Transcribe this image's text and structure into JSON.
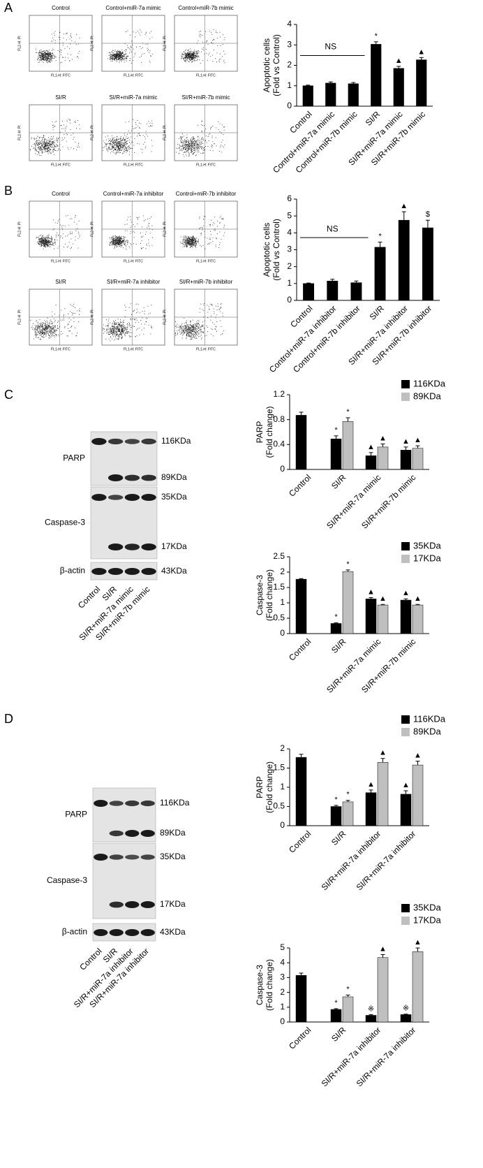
{
  "panels": [
    "A",
    "B",
    "C",
    "D"
  ],
  "flow": [
    {
      "titles": [
        "Control",
        "Control+miR-7a mimic",
        "Control+miR-7b mimic",
        "SI/R",
        "SI/R+miR-7a mimic",
        "SI/R+miR-7b mimic"
      ],
      "x_label": "FL1-H: FITC",
      "y_label": "FL2-H: PI"
    },
    {
      "titles": [
        "Control",
        "Control+miR-7a inhibitor",
        "Control+miR-7b inhibitor",
        "SI/R",
        "SI/R+miR-7a inhibitor",
        "SI/R+miR-7b inhibitor"
      ],
      "x_label": "FL1-H: FITC",
      "y_label": "FL2-H: PI"
    }
  ],
  "blots": [
    {
      "rows": [
        {
          "label": "PARP",
          "bands": [
            "116KDa",
            "89KDa"
          ]
        },
        {
          "label": "Caspase-3",
          "bands": [
            "35KDa",
            "17KDa"
          ]
        },
        {
          "label": "β-actin",
          "bands": [
            "43KDa"
          ]
        }
      ],
      "lanes": [
        "Control",
        "SI/R",
        "SI/R+miR-7a mimic",
        "SI/R+miR-7b mimic"
      ]
    },
    {
      "rows": [
        {
          "label": "PARP",
          "bands": [
            "116KDa",
            "89KDa"
          ]
        },
        {
          "label": "Caspase-3",
          "bands": [
            "35KDa",
            "17KDa"
          ]
        },
        {
          "label": "β-actin",
          "bands": [
            "43KDa"
          ]
        }
      ],
      "lanes": [
        "Control",
        "SI/R",
        "SI/R+miR-7a inhibitor",
        "SI/R+miR-7a inhibitor"
      ]
    }
  ],
  "chart_data": [
    {
      "type": "bar",
      "y_label": [
        "Apoptotic cells",
        "(Fold vs Control)"
      ],
      "annotation": "NS",
      "categories": [
        "Control",
        "Control+miR-7a mimic",
        "Control+miR-7b mimic",
        "SI/R",
        "SI/R+miR-7a mimic",
        "SI/R+miR-7b mimic"
      ],
      "series": [
        {
          "color": "#000000",
          "values": [
            1,
            1.13,
            1.1,
            3.03,
            1.85,
            2.27
          ],
          "errors": [
            0.03,
            0.06,
            0.06,
            0.12,
            0.1,
            0.11
          ],
          "markers": [
            null,
            null,
            null,
            "*",
            "▲",
            "▲"
          ]
        }
      ],
      "ylim": [
        0,
        4
      ],
      "yticks": [
        0,
        1,
        2,
        3,
        4
      ]
    },
    {
      "type": "bar",
      "y_label": [
        "Apoptotic cells",
        "(Fold vs Control)"
      ],
      "annotation": "NS",
      "categories": [
        "Control",
        "Control+miR-7a inhibitor",
        "Control+miR-7b inhibitor",
        "SI/R",
        "SI/R+miR-7a inhibitor",
        "SI/R+miR-7b inhibitor"
      ],
      "series": [
        {
          "color": "#000000",
          "values": [
            1,
            1.15,
            1.05,
            3.15,
            4.75,
            4.3
          ],
          "errors": [
            0.03,
            0.1,
            0.1,
            0.3,
            0.5,
            0.45
          ],
          "markers": [
            null,
            null,
            null,
            "*",
            "▲",
            "$"
          ]
        }
      ],
      "ylim": [
        0,
        6
      ],
      "yticks": [
        0,
        1,
        2,
        3,
        4,
        5,
        6
      ]
    },
    {
      "type": "bar",
      "y_label": [
        "PARP",
        "(Fold change)"
      ],
      "categories": [
        "Control",
        "SI/R",
        "SI/R+miR-7a mimic",
        "SI/R+miR-7b mimic"
      ],
      "series": [
        {
          "name": "116KDa",
          "color": "#000000",
          "values": [
            0.87,
            0.49,
            0.22,
            0.31
          ],
          "errors": [
            0.05,
            0.05,
            0.05,
            0.05
          ],
          "markers": [
            null,
            "*",
            "▲",
            "▲"
          ]
        },
        {
          "name": "89KDa",
          "color": "#bfbfbf",
          "values": [
            null,
            0.77,
            0.36,
            0.34
          ],
          "errors": [
            null,
            0.06,
            0.05,
            0.04
          ],
          "markers": [
            null,
            "*",
            "▲",
            "▲"
          ]
        }
      ],
      "ylim": [
        0,
        1.2
      ],
      "yticks": [
        0,
        0.4,
        0.8,
        1.2
      ]
    },
    {
      "type": "bar",
      "y_label": [
        "Caspase-3",
        "(Fold change)"
      ],
      "categories": [
        "Control",
        "SI/R",
        "SI/R+miR-7a mimic",
        "SI/R+miR-7b mimic"
      ],
      "series": [
        {
          "name": "35KDa",
          "color": "#000000",
          "values": [
            1.77,
            0.33,
            1.13,
            1.09
          ],
          "errors": [
            0.02,
            0.02,
            0.04,
            0.04
          ],
          "markers": [
            null,
            "*",
            "▲",
            "▲"
          ]
        },
        {
          "name": "17KDa",
          "color": "#bfbfbf",
          "values": [
            null,
            2.02,
            0.93,
            0.93
          ],
          "errors": [
            null,
            0.05,
            0.02,
            0.02
          ],
          "markers": [
            null,
            "*",
            "▲",
            "▲"
          ]
        }
      ],
      "ylim": [
        0,
        2.5
      ],
      "yticks": [
        0,
        0.5,
        1,
        1.5,
        2,
        2.5
      ]
    },
    {
      "type": "bar",
      "y_label": [
        "PARP",
        "(Fold change)"
      ],
      "categories": [
        "Control",
        "SI/R",
        "SI/R+miR-7a inhibitor",
        "SI/R+miR-7a inhibitor"
      ],
      "series": [
        {
          "name": "116KDa",
          "color": "#000000",
          "values": [
            1.78,
            0.5,
            0.86,
            0.82
          ],
          "errors": [
            0.08,
            0.03,
            0.07,
            0.09
          ],
          "markers": [
            null,
            "*",
            "▲",
            "▲"
          ]
        },
        {
          "name": "89KDa",
          "color": "#bfbfbf",
          "values": [
            null,
            0.62,
            1.65,
            1.58
          ],
          "errors": [
            null,
            0.04,
            0.1,
            0.1
          ],
          "markers": [
            null,
            "*",
            "▲",
            "▲"
          ]
        }
      ],
      "ylim": [
        0,
        2
      ],
      "yticks": [
        0,
        0.5,
        1,
        1.5,
        2
      ]
    },
    {
      "type": "bar",
      "y_label": [
        "Caspase-3",
        "(Fold change)"
      ],
      "categories": [
        "Control",
        "SI/R",
        "SI/R+miR-7a inhibitor",
        "SI/R+miR-7a inhibitor"
      ],
      "series": [
        {
          "name": "35KDa",
          "color": "#000000",
          "values": [
            3.15,
            0.85,
            0.45,
            0.5
          ],
          "errors": [
            0.15,
            0.05,
            0.05,
            0.03
          ],
          "markers": [
            null,
            "*",
            "※",
            "※"
          ]
        },
        {
          "name": "17KDa",
          "color": "#bfbfbf",
          "values": [
            null,
            1.7,
            4.35,
            4.75
          ],
          "errors": [
            null,
            0.12,
            0.2,
            0.25
          ],
          "markers": [
            null,
            "*",
            "▲",
            "▲"
          ]
        }
      ],
      "ylim": [
        0,
        5
      ],
      "yticks": [
        0,
        1,
        2,
        3,
        4,
        5
      ]
    }
  ]
}
